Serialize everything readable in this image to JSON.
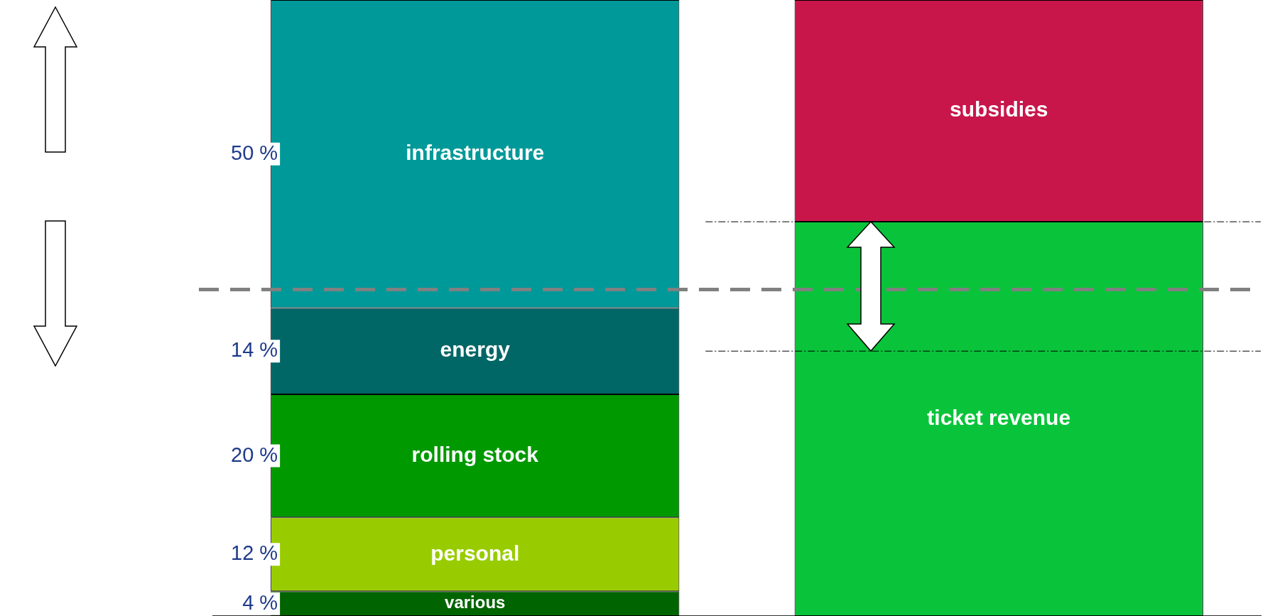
{
  "chart_data": {
    "type": "bar",
    "stacked": true,
    "categories": [
      null,
      null
    ],
    "ylim": [
      0,
      100
    ],
    "legend": false,
    "grid": false,
    "series": [
      {
        "name": "various",
        "color": "#006400",
        "values": [
          4,
          null
        ],
        "value_labels": [
          "4 %",
          null
        ]
      },
      {
        "name": "personal",
        "color": "#99cc00",
        "values": [
          12,
          null
        ],
        "value_labels": [
          "12 %",
          null
        ]
      },
      {
        "name": "rolling stock",
        "color": "#009900",
        "values": [
          20,
          null
        ],
        "value_labels": [
          "20 %",
          null
        ]
      },
      {
        "name": "energy",
        "color": "#006666",
        "values": [
          14,
          null
        ],
        "value_labels": [
          "14 %",
          null
        ]
      },
      {
        "name": "infrastructure",
        "color": "#009999",
        "values": [
          50,
          null
        ],
        "value_labels": [
          "50 %",
          null
        ]
      },
      {
        "name": "ticket revenue",
        "color": "#09c43a",
        "values": [
          null,
          64
        ]
      },
      {
        "name": "subsidies",
        "color": "#c8164b",
        "values": [
          null,
          36
        ]
      }
    ],
    "ref_lines": [
      {
        "axis": "y",
        "value": 53,
        "color": "#808080",
        "line_style": "dashed"
      },
      {
        "axis": "y",
        "value": 64,
        "color": "#000000",
        "line_style": "dotted"
      },
      {
        "axis": "y",
        "value": 43,
        "color": "#000000",
        "line_style": "dotted"
      }
    ]
  }
}
